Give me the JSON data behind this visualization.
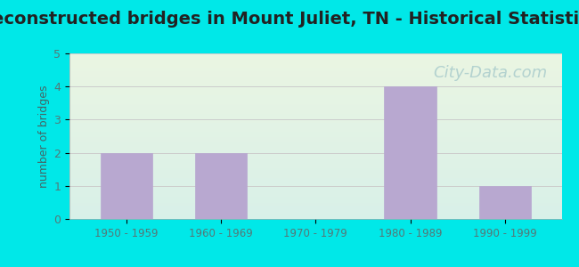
{
  "title": "Reconstructed bridges in Mount Juliet, TN - Historical Statistics",
  "categories": [
    "1950 - 1959",
    "1960 - 1969",
    "1970 - 1979",
    "1980 - 1989",
    "1990 - 1999"
  ],
  "values": [
    2,
    2,
    0,
    4,
    1
  ],
  "bar_color": "#b8a8d0",
  "bar_edgecolor": "#b8a8d0",
  "ylabel": "number of bridges",
  "ylim": [
    0,
    5
  ],
  "yticks": [
    0,
    1,
    2,
    3,
    4,
    5
  ],
  "background_outer": "#00e8e8",
  "background_plot_top": "#eaf5e2",
  "background_plot_bottom": "#d8f0e8",
  "title_fontsize": 14,
  "title_color": "#222222",
  "axis_label_color": "#446666",
  "tick_label_color": "#557777",
  "grid_color": "#cccccc",
  "watermark_text": "City-Data.com",
  "watermark_color": "#aacccc",
  "watermark_fontsize": 13,
  "bar_width": 0.55
}
